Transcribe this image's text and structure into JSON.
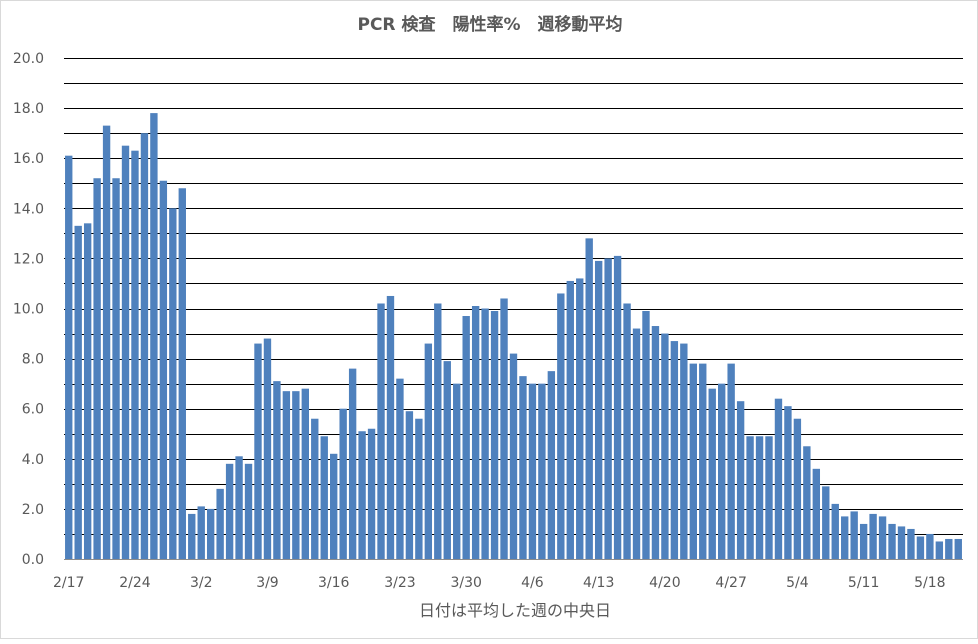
{
  "chart_data": {
    "type": "bar",
    "title": "PCR 検査　陽性率%　週移動平均",
    "xlabel": "日付は平均した週の中央日",
    "ylabel": "",
    "ylim": [
      0,
      20
    ],
    "yticks": [
      "0.0",
      "2.0",
      "4.0",
      "6.0",
      "8.0",
      "10.0",
      "12.0",
      "14.0",
      "16.0",
      "18.0",
      "20.0"
    ],
    "grid": true,
    "bar_color": "#4f81bd",
    "xtick_labels": [
      {
        "label": "2/17",
        "index": 0
      },
      {
        "label": "2/24",
        "index": 7
      },
      {
        "label": "3/2",
        "index": 14
      },
      {
        "label": "3/9",
        "index": 21
      },
      {
        "label": "3/16",
        "index": 28
      },
      {
        "label": "3/23",
        "index": 35
      },
      {
        "label": "3/30",
        "index": 42
      },
      {
        "label": "4/6",
        "index": 49
      },
      {
        "label": "4/13",
        "index": 56
      },
      {
        "label": "4/20",
        "index": 63
      },
      {
        "label": "4/27",
        "index": 70
      },
      {
        "label": "5/4",
        "index": 77
      },
      {
        "label": "5/11",
        "index": 84
      },
      {
        "label": "5/18",
        "index": 91
      }
    ],
    "categories": [
      "2/17",
      "2/18",
      "2/19",
      "2/20",
      "2/21",
      "2/22",
      "2/23",
      "2/24",
      "2/25",
      "2/26",
      "2/27",
      "2/28",
      "2/29",
      "3/1",
      "3/2",
      "3/3",
      "3/4",
      "3/5",
      "3/6",
      "3/7",
      "3/8",
      "3/9",
      "3/10",
      "3/11",
      "3/12",
      "3/13",
      "3/14",
      "3/15",
      "3/16",
      "3/17",
      "3/18",
      "3/19",
      "3/20",
      "3/21",
      "3/22",
      "3/23",
      "3/24",
      "3/25",
      "3/26",
      "3/27",
      "3/28",
      "3/29",
      "3/30",
      "3/31",
      "4/1",
      "4/2",
      "4/3",
      "4/4",
      "4/5",
      "4/6",
      "4/7",
      "4/8",
      "4/9",
      "4/10",
      "4/11",
      "4/12",
      "4/13",
      "4/14",
      "4/15",
      "4/16",
      "4/17",
      "4/18",
      "4/19",
      "4/20",
      "4/21",
      "4/22",
      "4/23",
      "4/24",
      "4/25",
      "4/26",
      "4/27",
      "4/28",
      "4/29",
      "4/30",
      "5/1",
      "5/2",
      "5/3",
      "5/4",
      "5/5",
      "5/6",
      "5/7",
      "5/8",
      "5/9",
      "5/10",
      "5/11",
      "5/12",
      "5/13",
      "5/14",
      "5/15",
      "5/16",
      "5/17",
      "5/18",
      "5/19",
      "5/20",
      "5/21"
    ],
    "values": [
      16.1,
      13.3,
      13.4,
      15.2,
      17.3,
      15.2,
      16.5,
      16.3,
      17.0,
      17.8,
      15.1,
      14.0,
      14.8,
      1.8,
      2.1,
      2.0,
      2.8,
      3.8,
      4.1,
      3.8,
      8.6,
      8.8,
      7.1,
      6.7,
      6.7,
      6.8,
      5.6,
      4.9,
      4.2,
      6.0,
      7.6,
      5.1,
      5.2,
      10.2,
      10.5,
      7.2,
      5.9,
      5.6,
      8.6,
      10.2,
      7.9,
      7.0,
      9.7,
      10.1,
      10.0,
      9.9,
      10.4,
      8.2,
      7.3,
      7.0,
      7.0,
      7.5,
      10.6,
      11.1,
      11.2,
      12.8,
      11.9,
      12.0,
      12.1,
      10.2,
      9.2,
      9.9,
      9.3,
      9.0,
      8.7,
      8.6,
      7.8,
      7.8,
      6.8,
      7.0,
      7.8,
      6.3,
      4.9,
      4.9,
      4.9,
      6.4,
      6.1,
      5.6,
      4.5,
      3.6,
      2.9,
      2.2,
      1.7,
      1.9,
      1.4,
      1.8,
      1.7,
      1.4,
      1.3,
      1.2,
      0.9,
      1.0,
      0.7,
      0.8,
      0.8
    ]
  }
}
